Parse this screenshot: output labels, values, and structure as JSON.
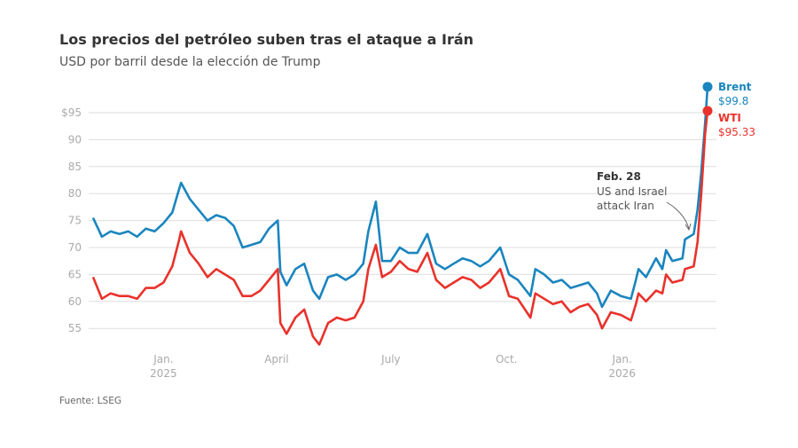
{
  "chart_data": {
    "type": "line",
    "title": "Los precios del petróleo suben tras el ataque a Irán",
    "subtitle": "USD por barril desde la elección de Trump",
    "source": "Fuente: LSEG",
    "ylim": [
      51,
      101
    ],
    "xlim": [
      "2024-11-06",
      "2026-03-10"
    ],
    "grid": true,
    "y_ticks": [
      {
        "v": 95,
        "label": "$95"
      },
      {
        "v": 90,
        "label": "90"
      },
      {
        "v": 85,
        "label": "85"
      },
      {
        "v": 80,
        "label": "80"
      },
      {
        "v": 75,
        "label": "75"
      },
      {
        "v": 70,
        "label": "70"
      },
      {
        "v": 65,
        "label": "65"
      },
      {
        "v": 60,
        "label": "60"
      },
      {
        "v": 55,
        "label": "55"
      }
    ],
    "x_ticks": [
      {
        "date": "2025-01-01",
        "label": "Jan.",
        "year": "2025"
      },
      {
        "date": "2025-04-01",
        "label": "April",
        "year": ""
      },
      {
        "date": "2025-07-01",
        "label": "July",
        "year": ""
      },
      {
        "date": "2025-10-01",
        "label": "Oct.",
        "year": ""
      },
      {
        "date": "2026-01-01",
        "label": "Jan.",
        "year": "2026"
      }
    ],
    "x": [
      "2024-11-06",
      "2024-11-13",
      "2024-11-20",
      "2024-11-27",
      "2024-12-04",
      "2024-12-11",
      "2024-12-18",
      "2024-12-25",
      "2025-01-01",
      "2025-01-08",
      "2025-01-13",
      "2025-01-15",
      "2025-01-22",
      "2025-01-29",
      "2025-02-05",
      "2025-02-12",
      "2025-02-19",
      "2025-02-26",
      "2025-03-05",
      "2025-03-12",
      "2025-03-19",
      "2025-03-26",
      "2025-04-02",
      "2025-04-04",
      "2025-04-09",
      "2025-04-16",
      "2025-04-23",
      "2025-04-30",
      "2025-05-05",
      "2025-05-12",
      "2025-05-19",
      "2025-05-26",
      "2025-06-02",
      "2025-06-09",
      "2025-06-13",
      "2025-06-19",
      "2025-06-24",
      "2025-07-01",
      "2025-07-08",
      "2025-07-15",
      "2025-07-22",
      "2025-07-30",
      "2025-08-06",
      "2025-08-13",
      "2025-08-20",
      "2025-08-27",
      "2025-09-03",
      "2025-09-10",
      "2025-09-17",
      "2025-09-26",
      "2025-10-03",
      "2025-10-10",
      "2025-10-20",
      "2025-10-24",
      "2025-10-31",
      "2025-11-07",
      "2025-11-14",
      "2025-11-21",
      "2025-11-28",
      "2025-12-05",
      "2025-12-12",
      "2025-12-16",
      "2025-12-23",
      "2025-12-31",
      "2026-01-08",
      "2026-01-12",
      "2026-01-14",
      "2026-01-20",
      "2026-01-28",
      "2026-02-02",
      "2026-02-05",
      "2026-02-10",
      "2026-02-18",
      "2026-02-20",
      "2026-02-27",
      "2026-03-02",
      "2026-03-05",
      "2026-03-08",
      "2026-03-10"
    ],
    "series": [
      {
        "name": "Brent",
        "color": "#1a85be",
        "last_label": "$99.8",
        "values": [
          75.5,
          72,
          73,
          72.5,
          73,
          72,
          73.5,
          73,
          74.5,
          76.5,
          80.5,
          82,
          79,
          77,
          75,
          76,
          75.5,
          74,
          70,
          70.5,
          71,
          73.5,
          75,
          65.5,
          63,
          66,
          67,
          62,
          60.5,
          64.5,
          65,
          64,
          65,
          67,
          73,
          78.5,
          67.5,
          67.5,
          70,
          69,
          69,
          72.5,
          67,
          66,
          67,
          68,
          67.5,
          66.5,
          67.5,
          70,
          65,
          64,
          61,
          66,
          65,
          63.5,
          64,
          62.5,
          63,
          63.5,
          61.5,
          59,
          62,
          61,
          60.5,
          64,
          66,
          64.5,
          68,
          66,
          69.5,
          67.5,
          68,
          71.5,
          72.5,
          77,
          84,
          93,
          99.8
        ]
      },
      {
        "name": "WTI",
        "color": "#e8322b",
        "last_label": "$95.33",
        "values": [
          64.5,
          60.5,
          61.5,
          61,
          61,
          60.5,
          62.5,
          62.5,
          63.5,
          66.5,
          71,
          73,
          69,
          67,
          64.5,
          66,
          65,
          64,
          61,
          61,
          62,
          64,
          66,
          56,
          54,
          57,
          58.5,
          53.5,
          52,
          56,
          57,
          56.5,
          57,
          60,
          66,
          70.5,
          64.5,
          65.5,
          67.5,
          66,
          65.5,
          69,
          64,
          62.5,
          63.5,
          64.5,
          64,
          62.5,
          63.5,
          66,
          61,
          60.5,
          57,
          61.5,
          60.5,
          59.5,
          60,
          58,
          59,
          59.5,
          57.5,
          55,
          58,
          57.5,
          56.5,
          59.5,
          61.5,
          60,
          62,
          61.5,
          65,
          63.5,
          64,
          66,
          66.5,
          71,
          80,
          91,
          95.33
        ]
      }
    ],
    "annotation": {
      "date": "2026-02-28",
      "title": "Feb. 28",
      "lines": [
        "US and Israel",
        "attack Iran"
      ]
    }
  }
}
